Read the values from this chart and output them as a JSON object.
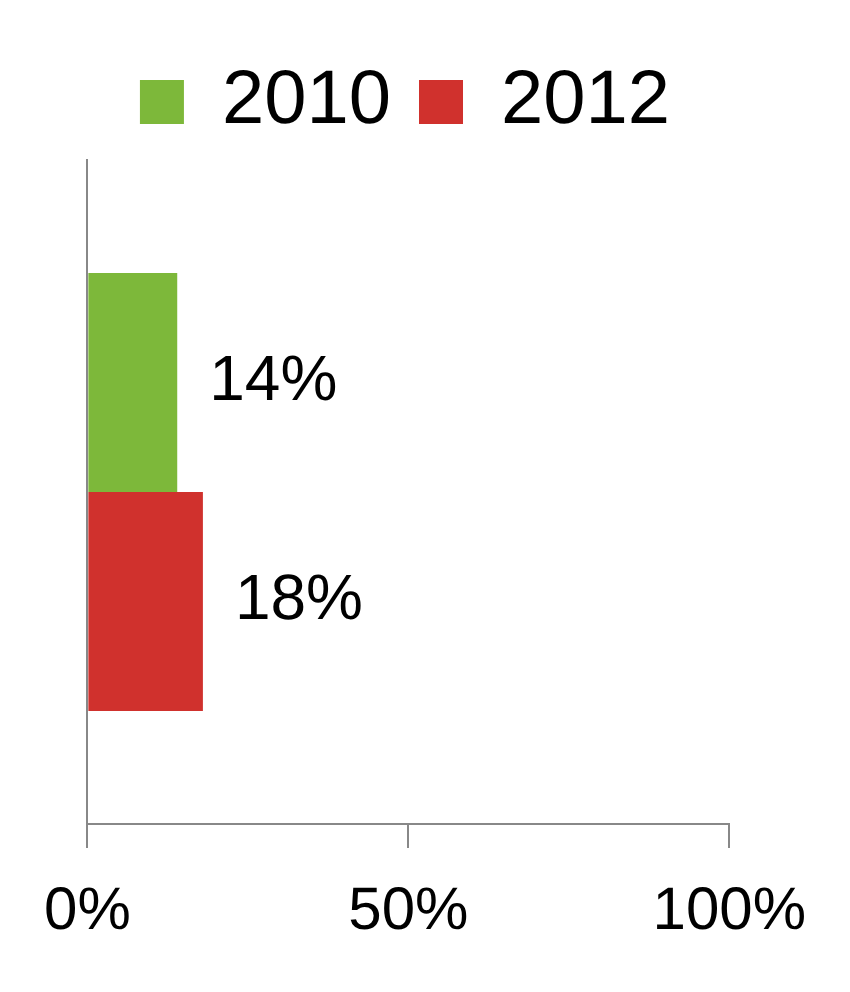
{
  "chart_data": {
    "type": "bar",
    "orientation": "horizontal",
    "categories": [
      null
    ],
    "series": [
      {
        "name": "2010",
        "color": "#7db83a",
        "values": [
          14
        ],
        "value_labels": [
          "14%"
        ]
      },
      {
        "name": "2012",
        "color": "#d0312d",
        "values": [
          18
        ],
        "value_labels": [
          "18%"
        ]
      }
    ],
    "xlim": [
      0,
      100
    ],
    "xticks": [
      {
        "value": 0,
        "label": "0%"
      },
      {
        "value": 50,
        "label": "50%"
      },
      {
        "value": 100,
        "label": "100%"
      }
    ],
    "legend": "top"
  }
}
